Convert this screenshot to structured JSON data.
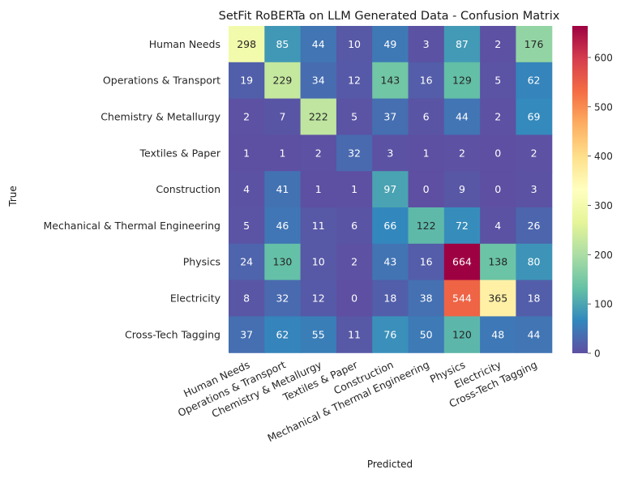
{
  "chart_data": {
    "type": "heatmap",
    "title": "SetFit RoBERTa on LLM Generated Data - Confusion Matrix",
    "xlabel": "Predicted",
    "ylabel": "True",
    "row_labels": [
      "Human Needs",
      "Operations & Transport",
      "Chemistry & Metallurgy",
      "Textiles & Paper",
      "Construction",
      "Mechanical & Thermal Engineering",
      "Physics",
      "Electricity",
      "Cross-Tech Tagging"
    ],
    "col_labels": [
      "Human Needs",
      "Operations & Transport",
      "Chemistry & Metallurgy",
      "Textiles & Paper",
      "Construction",
      "Mechanical & Thermal Engineering",
      "Physics",
      "Electricity",
      "Cross-Tech Tagging"
    ],
    "values": [
      [
        298,
        85,
        44,
        10,
        49,
        3,
        87,
        2,
        176
      ],
      [
        19,
        229,
        34,
        12,
        143,
        16,
        129,
        5,
        62
      ],
      [
        2,
        7,
        222,
        5,
        37,
        6,
        44,
        2,
        69
      ],
      [
        1,
        1,
        2,
        32,
        3,
        1,
        2,
        0,
        2
      ],
      [
        4,
        41,
        1,
        1,
        97,
        0,
        9,
        0,
        3
      ],
      [
        5,
        46,
        11,
        6,
        66,
        122,
        72,
        4,
        26
      ],
      [
        24,
        130,
        10,
        2,
        43,
        16,
        664,
        138,
        80
      ],
      [
        8,
        32,
        12,
        0,
        18,
        38,
        544,
        365,
        18
      ],
      [
        37,
        62,
        55,
        11,
        76,
        50,
        120,
        48,
        44
      ]
    ],
    "colormap": "Spectral_r",
    "vmin": 0,
    "vmax": 664,
    "colorbar_ticks": [
      0,
      100,
      200,
      300,
      400,
      500,
      600
    ]
  }
}
